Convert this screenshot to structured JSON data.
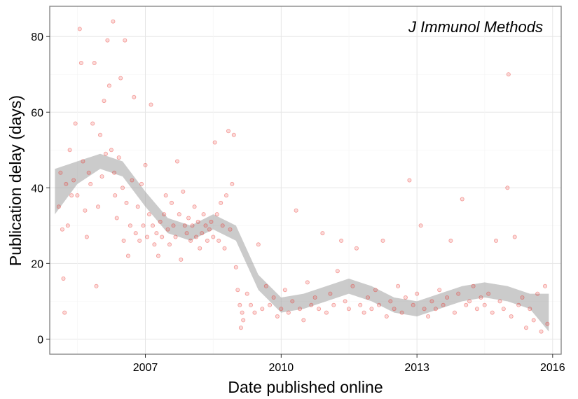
{
  "chart_data": {
    "type": "scatter",
    "title": "J Immunol Methods",
    "xlabel": "Date published online",
    "ylabel": "Publication delay (days)",
    "xlim": [
      "2004-11-20",
      "2016-03-10"
    ],
    "ylim": [
      -4,
      88
    ],
    "x_ticks": [
      "2007",
      "2010",
      "2013",
      "2016"
    ],
    "y_ticks": [
      0,
      20,
      40,
      60,
      80
    ],
    "grid": true,
    "point_color": "#E8302A",
    "smooth_band_color": "#A0A0A0",
    "series": [
      {
        "points": [
          [
            "2005-02-01",
            35
          ],
          [
            "2005-02-15",
            44
          ],
          [
            "2005-03-01",
            29
          ],
          [
            "2005-03-10",
            16
          ],
          [
            "2005-03-20",
            7
          ],
          [
            "2005-04-01",
            41
          ],
          [
            "2005-04-15",
            30
          ],
          [
            "2005-05-01",
            50
          ],
          [
            "2005-05-15",
            38
          ],
          [
            "2005-06-01",
            42
          ],
          [
            "2005-06-15",
            57
          ],
          [
            "2005-07-01",
            38
          ],
          [
            "2005-07-20",
            82
          ],
          [
            "2005-08-01",
            73
          ],
          [
            "2005-08-15",
            47
          ],
          [
            "2005-09-01",
            34
          ],
          [
            "2005-09-15",
            27
          ],
          [
            "2005-10-01",
            44
          ],
          [
            "2005-10-15",
            41
          ],
          [
            "2005-11-01",
            57
          ],
          [
            "2005-11-15",
            73
          ],
          [
            "2005-12-01",
            14
          ],
          [
            "2005-12-15",
            35
          ],
          [
            "2006-01-01",
            54
          ],
          [
            "2006-01-15",
            43
          ],
          [
            "2006-02-01",
            63
          ],
          [
            "2006-02-15",
            49
          ],
          [
            "2006-03-01",
            79
          ],
          [
            "2006-03-15",
            67
          ],
          [
            "2006-04-01",
            50
          ],
          [
            "2006-04-15",
            84
          ],
          [
            "2006-04-25",
            44
          ],
          [
            "2006-05-01",
            38
          ],
          [
            "2006-05-15",
            32
          ],
          [
            "2006-06-01",
            48
          ],
          [
            "2006-06-15",
            69
          ],
          [
            "2006-07-01",
            40
          ],
          [
            "2006-07-10",
            26
          ],
          [
            "2006-07-20",
            79
          ],
          [
            "2006-08-01",
            36
          ],
          [
            "2006-08-15",
            22
          ],
          [
            "2006-09-01",
            30
          ],
          [
            "2006-09-15",
            42
          ],
          [
            "2006-10-01",
            64
          ],
          [
            "2006-10-15",
            28
          ],
          [
            "2006-11-01",
            35
          ],
          [
            "2006-11-15",
            26
          ],
          [
            "2006-12-01",
            41
          ],
          [
            "2006-12-15",
            30
          ],
          [
            "2007-01-01",
            46
          ],
          [
            "2007-01-15",
            27
          ],
          [
            "2007-02-01",
            33
          ],
          [
            "2007-02-15",
            62
          ],
          [
            "2007-03-01",
            30
          ],
          [
            "2007-03-15",
            25
          ],
          [
            "2007-04-01",
            28
          ],
          [
            "2007-04-15",
            22
          ],
          [
            "2007-05-01",
            31
          ],
          [
            "2007-05-15",
            27
          ],
          [
            "2007-06-01",
            33
          ],
          [
            "2007-06-15",
            38
          ],
          [
            "2007-07-01",
            29
          ],
          [
            "2007-07-15",
            25
          ],
          [
            "2007-08-01",
            36
          ],
          [
            "2007-08-15",
            30
          ],
          [
            "2007-09-01",
            27
          ],
          [
            "2007-09-15",
            47
          ],
          [
            "2007-10-01",
            33
          ],
          [
            "2007-10-15",
            21
          ],
          [
            "2007-11-01",
            39
          ],
          [
            "2007-11-15",
            30
          ],
          [
            "2007-12-01",
            28
          ],
          [
            "2007-12-15",
            32
          ],
          [
            "2008-01-01",
            26
          ],
          [
            "2008-01-15",
            30
          ],
          [
            "2008-02-01",
            35
          ],
          [
            "2008-02-15",
            27
          ],
          [
            "2008-03-01",
            31
          ],
          [
            "2008-03-15",
            24
          ],
          [
            "2008-04-01",
            28
          ],
          [
            "2008-04-15",
            33
          ],
          [
            "2008-05-01",
            30
          ],
          [
            "2008-05-15",
            26
          ],
          [
            "2008-06-01",
            29
          ],
          [
            "2008-06-15",
            31
          ],
          [
            "2008-07-01",
            27
          ],
          [
            "2008-07-15",
            52
          ],
          [
            "2008-08-01",
            33
          ],
          [
            "2008-08-15",
            26
          ],
          [
            "2008-09-01",
            36
          ],
          [
            "2008-09-15",
            30
          ],
          [
            "2008-10-01",
            24
          ],
          [
            "2008-10-15",
            38
          ],
          [
            "2008-11-01",
            55
          ],
          [
            "2008-11-15",
            29
          ],
          [
            "2008-12-01",
            41
          ],
          [
            "2008-12-15",
            54
          ],
          [
            "2009-01-01",
            19
          ],
          [
            "2009-01-15",
            13
          ],
          [
            "2009-02-01",
            9
          ],
          [
            "2009-02-10",
            3
          ],
          [
            "2009-02-20",
            7
          ],
          [
            "2009-03-01",
            5
          ],
          [
            "2009-04-01",
            12
          ],
          [
            "2009-05-01",
            9
          ],
          [
            "2009-06-01",
            7
          ],
          [
            "2009-07-01",
            25
          ],
          [
            "2009-08-01",
            8
          ],
          [
            "2009-09-01",
            14
          ],
          [
            "2009-10-01",
            9
          ],
          [
            "2009-11-01",
            11
          ],
          [
            "2009-12-01",
            6
          ],
          [
            "2010-01-01",
            8
          ],
          [
            "2010-02-01",
            13
          ],
          [
            "2010-03-01",
            7
          ],
          [
            "2010-04-01",
            10
          ],
          [
            "2010-05-01",
            34
          ],
          [
            "2010-06-01",
            8
          ],
          [
            "2010-07-01",
            5
          ],
          [
            "2010-08-01",
            15
          ],
          [
            "2010-09-01",
            9
          ],
          [
            "2010-10-01",
            11
          ],
          [
            "2010-11-01",
            8
          ],
          [
            "2010-12-01",
            28
          ],
          [
            "2011-01-01",
            7
          ],
          [
            "2011-02-01",
            12
          ],
          [
            "2011-03-01",
            9
          ],
          [
            "2011-04-01",
            18
          ],
          [
            "2011-05-01",
            26
          ],
          [
            "2011-06-01",
            10
          ],
          [
            "2011-07-01",
            8
          ],
          [
            "2011-08-01",
            14
          ],
          [
            "2011-09-01",
            24
          ],
          [
            "2011-10-01",
            9
          ],
          [
            "2011-11-01",
            7
          ],
          [
            "2011-12-01",
            11
          ],
          [
            "2012-01-01",
            8
          ],
          [
            "2012-02-01",
            13
          ],
          [
            "2012-03-01",
            9
          ],
          [
            "2012-04-01",
            26
          ],
          [
            "2012-05-01",
            6
          ],
          [
            "2012-06-01",
            10
          ],
          [
            "2012-07-01",
            8
          ],
          [
            "2012-08-01",
            14
          ],
          [
            "2012-09-01",
            7
          ],
          [
            "2012-10-01",
            11
          ],
          [
            "2012-11-01",
            42
          ],
          [
            "2012-12-01",
            9
          ],
          [
            "2013-01-01",
            12
          ],
          [
            "2013-02-01",
            30
          ],
          [
            "2013-03-01",
            8
          ],
          [
            "2013-04-01",
            6
          ],
          [
            "2013-05-01",
            10
          ],
          [
            "2013-06-01",
            8
          ],
          [
            "2013-07-01",
            13
          ],
          [
            "2013-08-01",
            9
          ],
          [
            "2013-09-01",
            11
          ],
          [
            "2013-10-01",
            26
          ],
          [
            "2013-11-01",
            7
          ],
          [
            "2013-12-01",
            12
          ],
          [
            "2014-01-01",
            37
          ],
          [
            "2014-02-01",
            9
          ],
          [
            "2014-03-01",
            10
          ],
          [
            "2014-04-01",
            14
          ],
          [
            "2014-05-01",
            8
          ],
          [
            "2014-06-01",
            11
          ],
          [
            "2014-07-01",
            9
          ],
          [
            "2014-08-01",
            12
          ],
          [
            "2014-09-01",
            7
          ],
          [
            "2014-10-01",
            26
          ],
          [
            "2014-11-01",
            10
          ],
          [
            "2014-12-01",
            8
          ],
          [
            "2015-01-01",
            40
          ],
          [
            "2015-01-10",
            70
          ],
          [
            "2015-02-01",
            6
          ],
          [
            "2015-03-01",
            27
          ],
          [
            "2015-04-01",
            9
          ],
          [
            "2015-05-01",
            11
          ],
          [
            "2015-06-01",
            3
          ],
          [
            "2015-07-01",
            8
          ],
          [
            "2015-08-01",
            5
          ],
          [
            "2015-09-01",
            12
          ],
          [
            "2015-10-01",
            2
          ],
          [
            "2015-11-01",
            14
          ],
          [
            "2015-11-20",
            4
          ]
        ]
      }
    ],
    "smooth": {
      "x": [
        "2005-01-01",
        "2005-07-01",
        "2006-01-01",
        "2006-07-01",
        "2007-01-01",
        "2007-07-01",
        "2008-01-01",
        "2008-07-01",
        "2009-01-01",
        "2009-07-01",
        "2010-01-01",
        "2010-07-01",
        "2011-01-01",
        "2011-07-01",
        "2012-01-01",
        "2012-07-01",
        "2013-01-01",
        "2013-07-01",
        "2014-01-01",
        "2014-07-01",
        "2015-01-01",
        "2015-07-01",
        "2015-12-01"
      ],
      "fit": [
        39,
        44,
        47,
        45,
        37,
        30,
        28,
        31,
        28,
        15,
        9,
        10,
        12,
        14,
        12,
        9,
        8,
        10,
        12,
        13,
        12,
        10,
        7
      ],
      "lower": [
        33,
        41,
        45,
        43,
        35,
        28,
        26,
        29,
        26,
        13,
        7,
        8,
        10,
        12,
        10,
        7,
        6,
        8,
        10,
        11,
        10,
        8,
        2
      ],
      "upper": [
        45,
        47,
        49,
        47,
        39,
        32,
        30,
        33,
        30,
        17,
        11,
        12,
        14,
        16,
        14,
        11,
        10,
        12,
        14,
        15,
        14,
        12,
        12
      ]
    }
  }
}
